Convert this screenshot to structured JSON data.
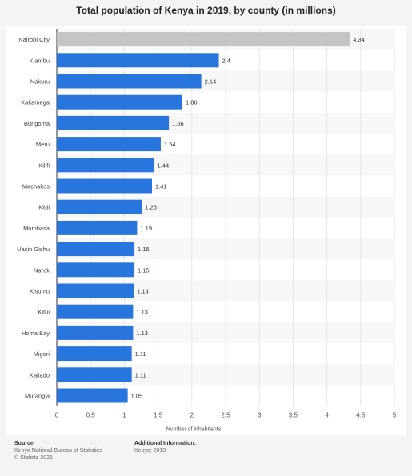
{
  "chart_data": {
    "type": "bar",
    "orientation": "horizontal",
    "title": "Total population of Kenya in 2019, by county (in millions)",
    "xlabel": "Number of inhabitants",
    "ylabel": "",
    "xlim": [
      0,
      5
    ],
    "xticks": [
      "0",
      "0.5",
      "1",
      "1.5",
      "2",
      "2.5",
      "3",
      "3.5",
      "4",
      "4.5",
      "5"
    ],
    "grid": true,
    "categories": [
      "Nairobi City",
      "Kiambu",
      "Nakuru",
      "Kakamega",
      "Bungoma",
      "Meru",
      "Kilifi",
      "Machakos",
      "Kisii",
      "Mombasa",
      "Uasin Gishu",
      "Narok",
      "Kisumu",
      "Kitui",
      "Homa Bay",
      "Migori",
      "Kajiado",
      "Murang'a"
    ],
    "values": [
      4.34,
      2.4,
      2.14,
      1.86,
      1.66,
      1.54,
      1.44,
      1.41,
      1.26,
      1.19,
      1.15,
      1.15,
      1.14,
      1.13,
      1.13,
      1.11,
      1.11,
      1.05
    ],
    "value_labels": [
      "4.34",
      "2.4",
      "2.14",
      "1.86",
      "1.66",
      "1.54",
      "1.44",
      "1.41",
      "1.26",
      "1.19",
      "1.15",
      "1.15",
      "1.14",
      "1.13",
      "1.13",
      "1.11",
      "1.11",
      "1.05"
    ],
    "colors": {
      "bar": "#2876dd",
      "highlight": "#c4c4c4",
      "grid": "#e6e6e6"
    }
  },
  "footer": {
    "source_heading": "Source",
    "source_line1": "Kenya National Bureau of Statistics",
    "source_line2": "© Statista 2021",
    "info_heading": "Additional Information:",
    "info_line1": "Kenya; 2019"
  }
}
